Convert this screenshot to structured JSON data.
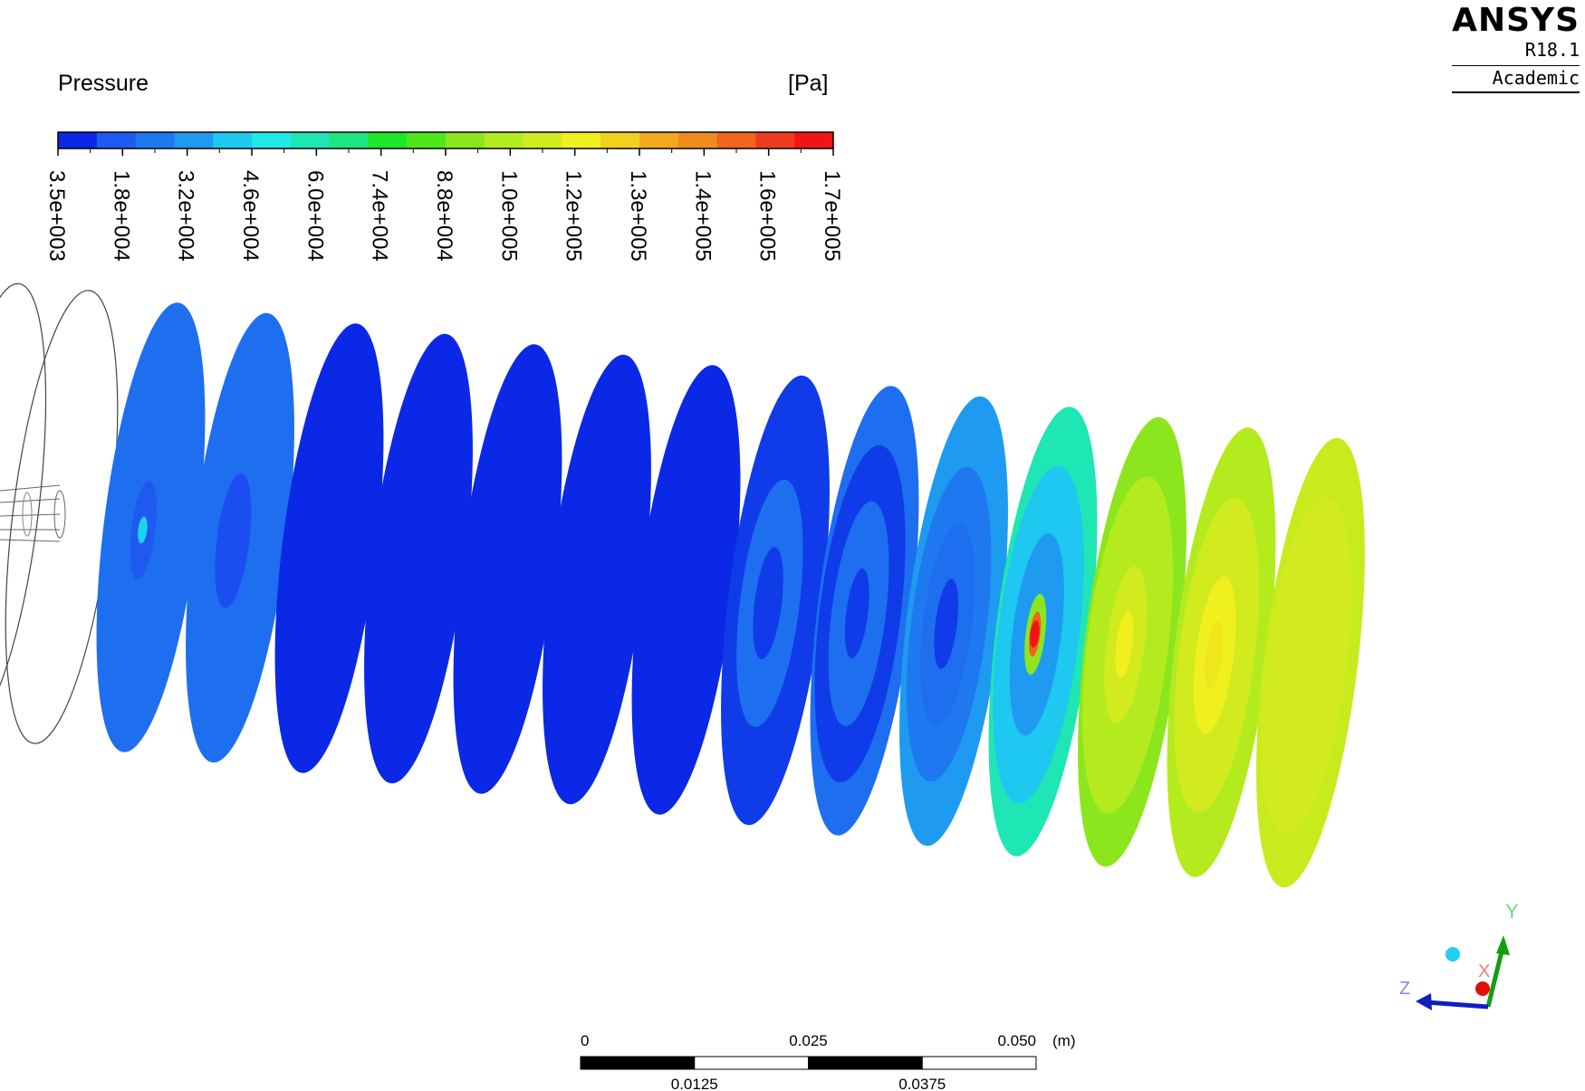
{
  "logo": {
    "brand": "ANSYS",
    "release": "R18.1",
    "edition": "Academic"
  },
  "legend": {
    "title": "Pressure",
    "unit": "[Pa]",
    "ticks": [
      "3.5e+003",
      "1.8e+004",
      "3.2e+004",
      "4.6e+004",
      "6.0e+004",
      "7.4e+004",
      "8.8e+004",
      "1.0e+005",
      "1.2e+005",
      "1.3e+005",
      "1.4e+005",
      "1.6e+005",
      "1.7e+005"
    ],
    "colors": [
      "#0a28e6",
      "#1e5af0",
      "#1e78f0",
      "#1e9bf0",
      "#1ec8f0",
      "#1eebe6",
      "#1ee6b4",
      "#1ee682",
      "#1ee628",
      "#50e61e",
      "#8ce61e",
      "#b4eb1e",
      "#d2eb1e",
      "#f0f01e",
      "#f0d21e",
      "#f0aa1e",
      "#f08c1e",
      "#f0641e",
      "#f03c1e",
      "#f01414"
    ]
  },
  "slices": [
    {
      "outline": true
    },
    {
      "base": "#1e6ef0",
      "contours": [
        {
          "color": "#1e5af0",
          "scale": 0.22
        },
        {
          "color": "#1ed2f0",
          "scale": 0.06
        }
      ]
    },
    {
      "base": "#1e6ef0",
      "contours": [
        {
          "color": "#1a4ef0",
          "scale": 0.3
        }
      ]
    },
    {
      "base": "#0a28e6",
      "contours": []
    },
    {
      "base": "#0a28e6",
      "contours": []
    },
    {
      "base": "#0a28e6",
      "contours": []
    },
    {
      "base": "#0a28e6",
      "contours": []
    },
    {
      "base": "#0a28e6",
      "contours": []
    },
    {
      "base": "#0f3ce8",
      "contours": [
        {
          "color": "#1e6ef0",
          "scale": 0.55
        },
        {
          "color": "#0f3ce8",
          "scale": 0.25
        }
      ]
    },
    {
      "base": "#1e6ef0",
      "contours": [
        {
          "color": "#0f3ce8",
          "scale": 0.75
        },
        {
          "color": "#1e6ef0",
          "scale": 0.5
        },
        {
          "color": "#0f3ce8",
          "scale": 0.2
        }
      ]
    },
    {
      "base": "#1e9bf0",
      "contours": [
        {
          "color": "#1e78f0",
          "scale": 0.7
        },
        {
          "color": "#1e6ef0",
          "scale": 0.45
        },
        {
          "color": "#0f3ce8",
          "scale": 0.2
        }
      ]
    },
    {
      "base": "#1ee6b4",
      "contours": [
        {
          "color": "#1ec8f0",
          "scale": 0.75
        },
        {
          "color": "#1e9bf0",
          "scale": 0.45
        },
        {
          "color": "#8ce61e",
          "scale": 0.18
        },
        {
          "color": "#f0641e",
          "scale": 0.1
        },
        {
          "color": "#f01414",
          "scale": 0.06
        }
      ]
    },
    {
      "base": "#8ce61e",
      "contours": [
        {
          "color": "#b4eb1e",
          "scale": 0.75
        },
        {
          "color": "#d2eb1e",
          "scale": 0.35
        },
        {
          "color": "#f0f01e",
          "scale": 0.15
        }
      ]
    },
    {
      "base": "#b4eb1e",
      "contours": [
        {
          "color": "#d2eb1e",
          "scale": 0.7
        },
        {
          "color": "#f0f01e",
          "scale": 0.35
        },
        {
          "color": "#f0e61e",
          "scale": 0.15
        }
      ]
    },
    {
      "base": "#c8eb1e",
      "contours": [
        {
          "color": "#d2eb1e",
          "scale": 0.75
        }
      ]
    }
  ],
  "scale_bar": {
    "top_labels": [
      "0",
      "0.025",
      "0.050"
    ],
    "unit": "(m)",
    "bottom_labels": [
      "0.0125",
      "0.0375"
    ]
  },
  "triad": {
    "x_label": "X",
    "y_label": "Y",
    "z_label": "Z",
    "x_color": "#e01010",
    "y_color": "#10a010",
    "z_color": "#1020c0",
    "dot_color": "#20d0f0"
  }
}
